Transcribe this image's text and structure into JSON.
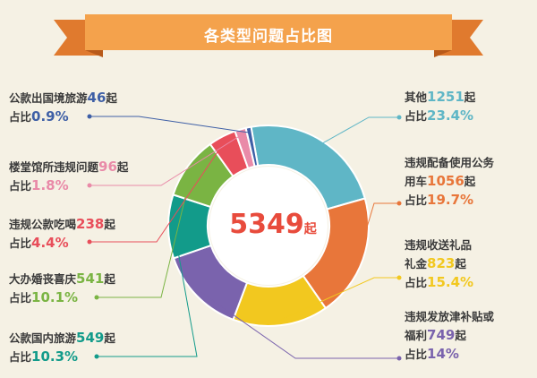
{
  "header": {
    "title": "各类型问题占比图"
  },
  "center": {
    "total": "5349",
    "unit": "起"
  },
  "chart_data": {
    "type": "pie",
    "total": 5349,
    "unit": "起",
    "slices": [
      {
        "name_line1": "其他",
        "name_line2": "",
        "count": 1251,
        "percent": 23.4,
        "count_text": "1251",
        "percent_text": "23.4%",
        "color": "#5fb6c6"
      },
      {
        "name_line1": "违规配备使用公务",
        "name_line2": "用车",
        "count": 1056,
        "percent": 19.7,
        "count_text": "1056",
        "percent_text": "19.7%",
        "color": "#e8763a"
      },
      {
        "name_line1": "违规收送礼品",
        "name_line2": "礼金",
        "count": 823,
        "percent": 15.4,
        "count_text": "823",
        "percent_text": "15.4%",
        "color": "#f2c81f"
      },
      {
        "name_line1": "违规发放津补贴或",
        "name_line2": "福利",
        "count": 749,
        "percent": 14,
        "count_text": "749",
        "percent_text": "14%",
        "color": "#7a63ad"
      },
      {
        "name_line1": "公款国内旅游",
        "name_line2": "",
        "count": 549,
        "percent": 10.3,
        "count_text": "549",
        "percent_text": "10.3%",
        "color": "#129b8a"
      },
      {
        "name_line1": "大办婚丧喜庆",
        "name_line2": "",
        "count": 541,
        "percent": 10.1,
        "count_text": "541",
        "percent_text": "10.1%",
        "color": "#7ab443"
      },
      {
        "name_line1": "违规公款吃喝",
        "name_line2": "",
        "count": 238,
        "percent": 4.4,
        "count_text": "238",
        "percent_text": "4.4%",
        "color": "#e84e5a"
      },
      {
        "name_line1": "楼堂馆所违规问题",
        "name_line2": "",
        "count": 96,
        "percent": 1.8,
        "count_text": "96",
        "percent_text": "1.8%",
        "color": "#e98aa8"
      },
      {
        "name_line1": "公款出国境旅游",
        "name_line2": "",
        "count": 46,
        "percent": 0.9,
        "count_text": "46",
        "percent_text": "0.9%",
        "color": "#3e5fa6"
      }
    ],
    "count_suffix": "起",
    "percent_prefix": "占比"
  }
}
